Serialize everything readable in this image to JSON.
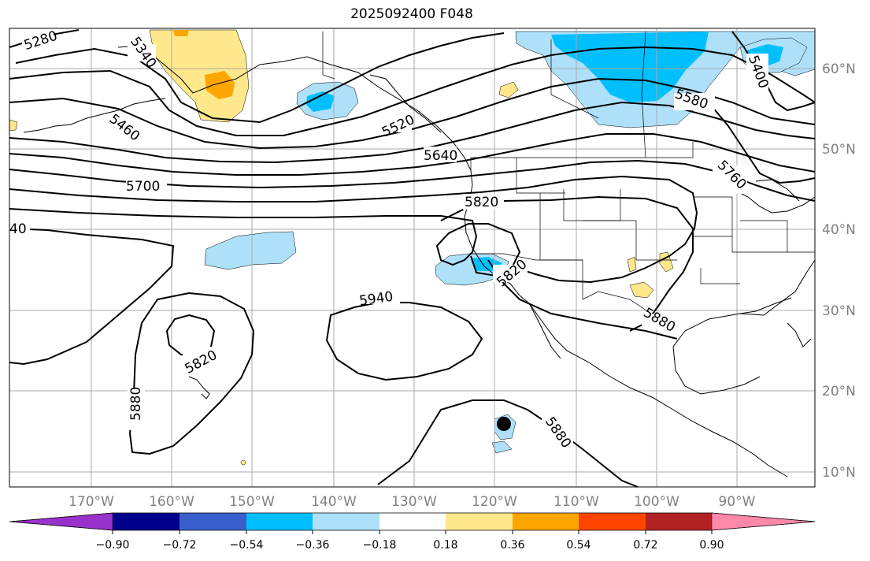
{
  "title": "2025092400 F048",
  "lat_labels": [
    "60°N",
    "50°N",
    "40°N",
    "30°N",
    "20°N",
    "10°N"
  ],
  "lon_labels": [
    "170°W",
    "160°W",
    "150°W",
    "140°W",
    "130°W",
    "120°W",
    "110°W",
    "100°W",
    "90°W"
  ],
  "contour_labels": [
    "5280",
    "5340",
    "5460",
    "5520",
    "5640",
    "5700",
    "5820",
    "5940",
    "5820",
    "5880",
    "5880",
    "5820",
    "5880",
    "5580",
    "5760",
    "5400",
    "40"
  ],
  "colorbar": {
    "ticks": [
      "−0.90",
      "−0.72",
      "−0.54",
      "−0.36",
      "−0.18",
      "0.18",
      "0.36",
      "0.54",
      "0.72",
      "0.90"
    ],
    "colors": [
      "#9932cc",
      "#00008b",
      "#3a5fcd",
      "#00bfff",
      "#aee0fa",
      "#ffffff",
      "#ffe88c",
      "#ffa500",
      "#ff4500",
      "#b22222",
      "#ff88aa"
    ]
  }
}
